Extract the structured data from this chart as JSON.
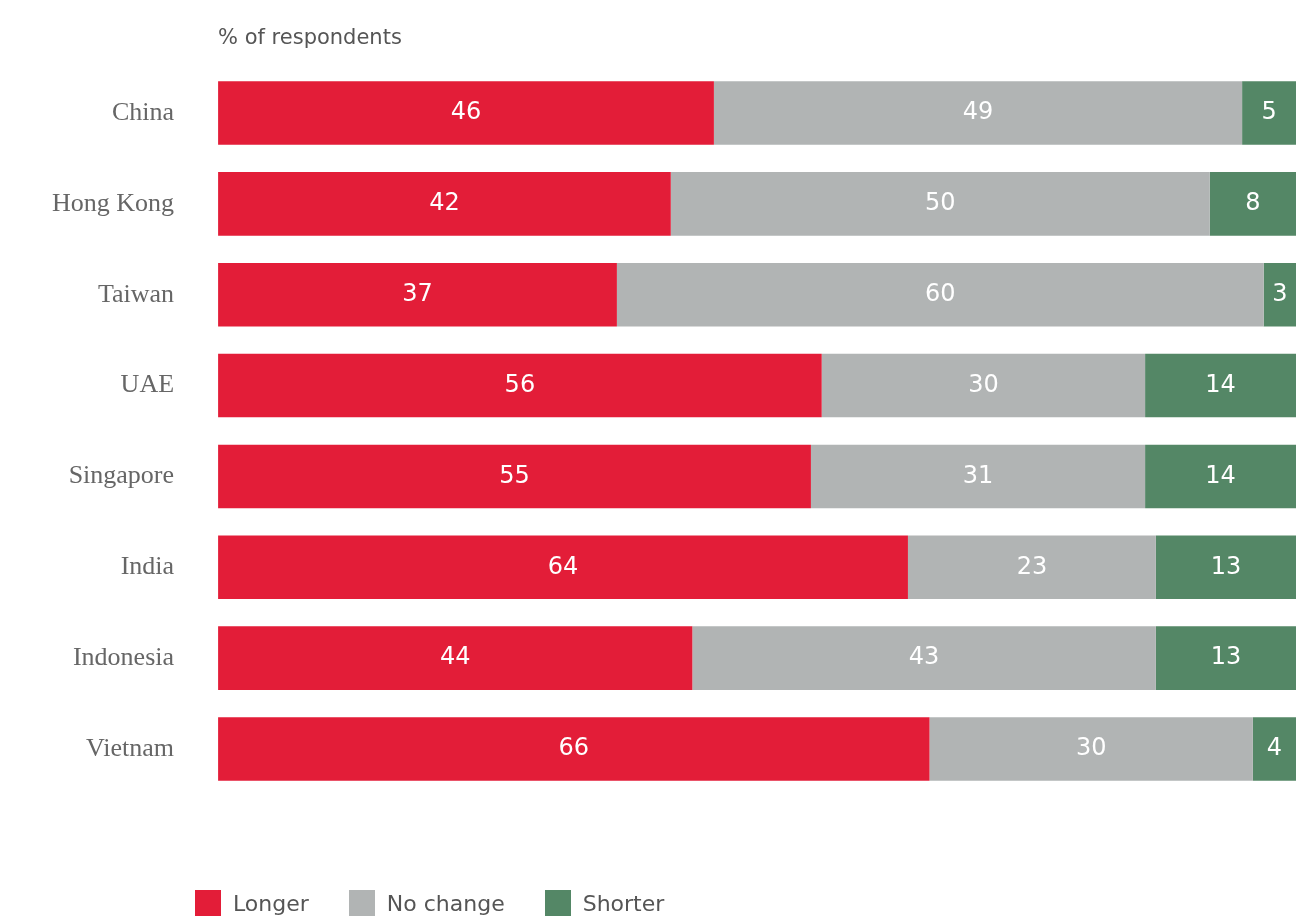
{
  "chart_data": {
    "type": "bar",
    "orientation": "horizontal",
    "stacked": true,
    "xlabel": "% of respondents",
    "categories": [
      "China",
      "Hong Kong",
      "Taiwan",
      "UAE",
      "Singapore",
      "India",
      "Indonesia",
      "Vietnam"
    ],
    "series": [
      {
        "name": "Longer",
        "color": "#e31d38",
        "values": [
          46,
          42,
          37,
          56,
          55,
          64,
          44,
          66
        ]
      },
      {
        "name": "No change",
        "color": "#b1b4b4",
        "values": [
          49,
          50,
          60,
          30,
          31,
          23,
          43,
          30
        ]
      },
      {
        "name": "Shorter",
        "color": "#548766",
        "values": [
          5,
          8,
          3,
          14,
          14,
          13,
          13,
          4
        ]
      }
    ],
    "xlim": [
      0,
      100
    ],
    "tick_labels": "y",
    "data_labels": true,
    "grid": false,
    "legend": "bottom left"
  }
}
